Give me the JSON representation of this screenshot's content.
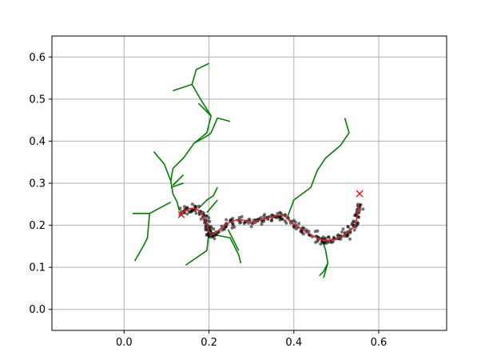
{
  "chart_data": {
    "type": "scatter",
    "title": "",
    "xlabel": "",
    "ylabel": "",
    "xlim": [
      -0.17,
      0.76
    ],
    "ylim": [
      -0.05,
      0.65
    ],
    "grid": true,
    "x_ticks": [
      "0.0",
      "0.2",
      "0.4",
      "0.6"
    ],
    "x_tick_values": [
      0.0,
      0.2,
      0.4,
      0.6
    ],
    "y_ticks": [
      "0.0",
      "0.1",
      "0.2",
      "0.3",
      "0.4",
      "0.5",
      "0.6"
    ],
    "y_tick_values": [
      0.0,
      0.1,
      0.2,
      0.3,
      0.4,
      0.5,
      0.6
    ],
    "colors": {
      "branches": "#008000",
      "path": "#d62728",
      "points": "#000000",
      "markers": "#ff0000",
      "grid": "#b0b0b0"
    },
    "markers": [
      {
        "x": 0.135,
        "y": 0.225,
        "symbol": "x"
      },
      {
        "x": 0.555,
        "y": 0.275,
        "symbol": "x"
      }
    ],
    "path": [
      [
        0.135,
        0.23
      ],
      [
        0.155,
        0.24
      ],
      [
        0.17,
        0.24
      ],
      [
        0.185,
        0.225
      ],
      [
        0.195,
        0.205
      ],
      [
        0.2,
        0.185
      ],
      [
        0.21,
        0.178
      ],
      [
        0.225,
        0.19
      ],
      [
        0.245,
        0.205
      ],
      [
        0.27,
        0.215
      ],
      [
        0.3,
        0.207
      ],
      [
        0.33,
        0.215
      ],
      [
        0.355,
        0.222
      ],
      [
        0.375,
        0.225
      ],
      [
        0.395,
        0.205
      ],
      [
        0.42,
        0.19
      ],
      [
        0.445,
        0.175
      ],
      [
        0.47,
        0.163
      ],
      [
        0.49,
        0.165
      ],
      [
        0.51,
        0.172
      ],
      [
        0.53,
        0.185
      ],
      [
        0.545,
        0.2
      ],
      [
        0.55,
        0.225
      ],
      [
        0.553,
        0.25
      ]
    ],
    "branches": [
      [
        [
          0.13,
          0.235
        ],
        [
          0.125,
          0.255
        ],
        [
          0.115,
          0.275
        ],
        [
          0.11,
          0.305
        ],
        [
          0.115,
          0.335
        ],
        [
          0.14,
          0.36
        ],
        [
          0.165,
          0.395
        ],
        [
          0.2,
          0.415
        ],
        [
          0.205,
          0.42
        ],
        [
          0.22,
          0.455
        ],
        [
          0.25,
          0.447
        ]
      ],
      [
        [
          0.165,
          0.395
        ],
        [
          0.195,
          0.42
        ],
        [
          0.205,
          0.46
        ],
        [
          0.18,
          0.5
        ],
        [
          0.16,
          0.535
        ],
        [
          0.17,
          0.57
        ],
        [
          0.2,
          0.585
        ]
      ],
      [
        [
          0.16,
          0.535
        ],
        [
          0.115,
          0.52
        ]
      ],
      [
        [
          0.205,
          0.46
        ],
        [
          0.175,
          0.49
        ]
      ],
      [
        [
          0.11,
          0.305
        ],
        [
          0.095,
          0.345
        ],
        [
          0.07,
          0.375
        ]
      ],
      [
        [
          0.115,
          0.295
        ],
        [
          0.14,
          0.32
        ]
      ],
      [
        [
          0.11,
          0.29
        ],
        [
          0.14,
          0.3
        ]
      ],
      [
        [
          0.11,
          0.255
        ],
        [
          0.06,
          0.228
        ],
        [
          0.02,
          0.228
        ]
      ],
      [
        [
          0.06,
          0.228
        ],
        [
          0.055,
          0.17
        ],
        [
          0.045,
          0.15
        ],
        [
          0.025,
          0.115
        ]
      ],
      [
        [
          0.175,
          0.24
        ],
        [
          0.195,
          0.26
        ],
        [
          0.21,
          0.27
        ],
        [
          0.22,
          0.29
        ]
      ],
      [
        [
          0.195,
          0.23
        ],
        [
          0.22,
          0.26
        ]
      ],
      [
        [
          0.2,
          0.185
        ],
        [
          0.195,
          0.14
        ],
        [
          0.145,
          0.105
        ]
      ],
      [
        [
          0.21,
          0.178
        ],
        [
          0.25,
          0.17
        ],
        [
          0.27,
          0.13
        ],
        [
          0.275,
          0.11
        ]
      ],
      [
        [
          0.245,
          0.19
        ],
        [
          0.27,
          0.14
        ]
      ],
      [
        [
          0.385,
          0.22
        ],
        [
          0.4,
          0.26
        ],
        [
          0.44,
          0.29
        ],
        [
          0.455,
          0.33
        ],
        [
          0.475,
          0.36
        ],
        [
          0.51,
          0.39
        ],
        [
          0.53,
          0.42
        ],
        [
          0.52,
          0.455
        ]
      ],
      [
        [
          0.465,
          0.17
        ],
        [
          0.475,
          0.14
        ],
        [
          0.48,
          0.11
        ],
        [
          0.47,
          0.09
        ],
        [
          0.46,
          0.08
        ]
      ],
      [
        [
          0.48,
          0.11
        ],
        [
          0.47,
          0.075
        ]
      ]
    ],
    "point_seed": 7,
    "point_count": 300,
    "point_spread": 0.009
  }
}
